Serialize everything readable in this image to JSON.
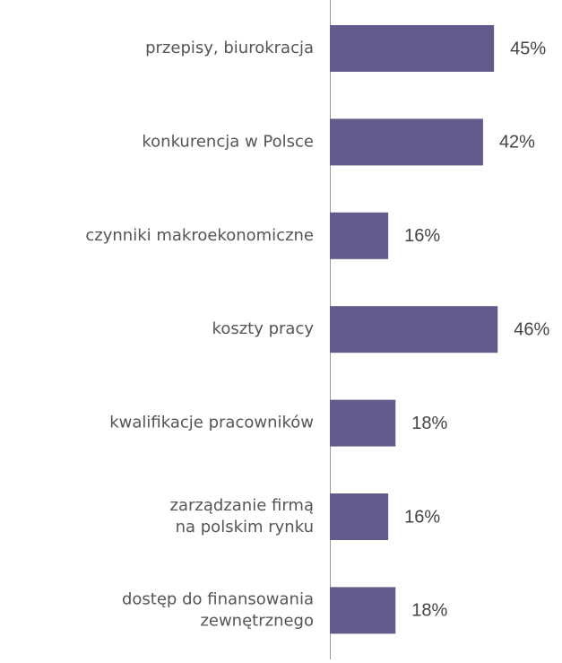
{
  "chart_data": {
    "type": "bar",
    "orientation": "horizontal",
    "categories": [
      "przepisy, biurokracja",
      "konkurencja w Polsce",
      "czynniki makroekonomiczne",
      "koszty pracy",
      "kwalifikacje pracowników",
      "zarządzanie firmą\nna polskim rynku",
      "dostęp do finansowania\nzewnętrznego"
    ],
    "values": [
      45,
      42,
      16,
      46,
      18,
      16,
      18
    ],
    "value_labels": [
      "45%",
      "42%",
      "16%",
      "46%",
      "18%",
      "16%",
      "18%"
    ],
    "color": "#625a8a"
  }
}
